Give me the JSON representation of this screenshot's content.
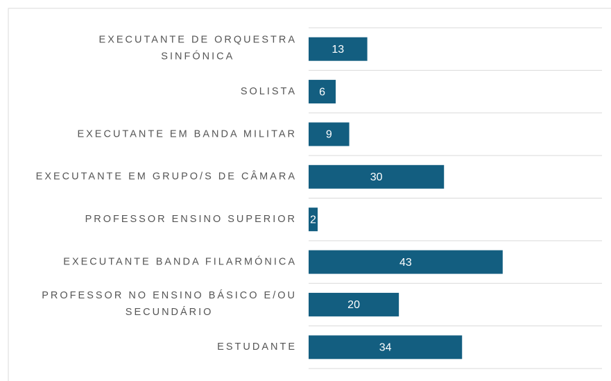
{
  "chart_data": {
    "type": "barh",
    "categories": [
      [
        "EXECUTANTE DE ORQUESTRA",
        "SINFÓNICA"
      ],
      [
        "SOLISTA"
      ],
      [
        "EXECUTANTE EM BANDA MILITAR"
      ],
      [
        "EXECUTANTE EM GRUPO/S DE CÂMARA"
      ],
      [
        "PROFESSOR ENSINO SUPERIOR"
      ],
      [
        "EXECUTANTE BANDA FILARMÓNICA"
      ],
      [
        "PROFESSOR NO ENSINO BÁSICO E/OU",
        "SECUNDÁRIO"
      ],
      [
        "ESTUDANTE"
      ]
    ],
    "values": [
      13,
      6,
      9,
      30,
      2,
      43,
      20,
      34
    ],
    "color": "#135e80",
    "xlim": [
      0,
      65
    ],
    "grid": true
  }
}
